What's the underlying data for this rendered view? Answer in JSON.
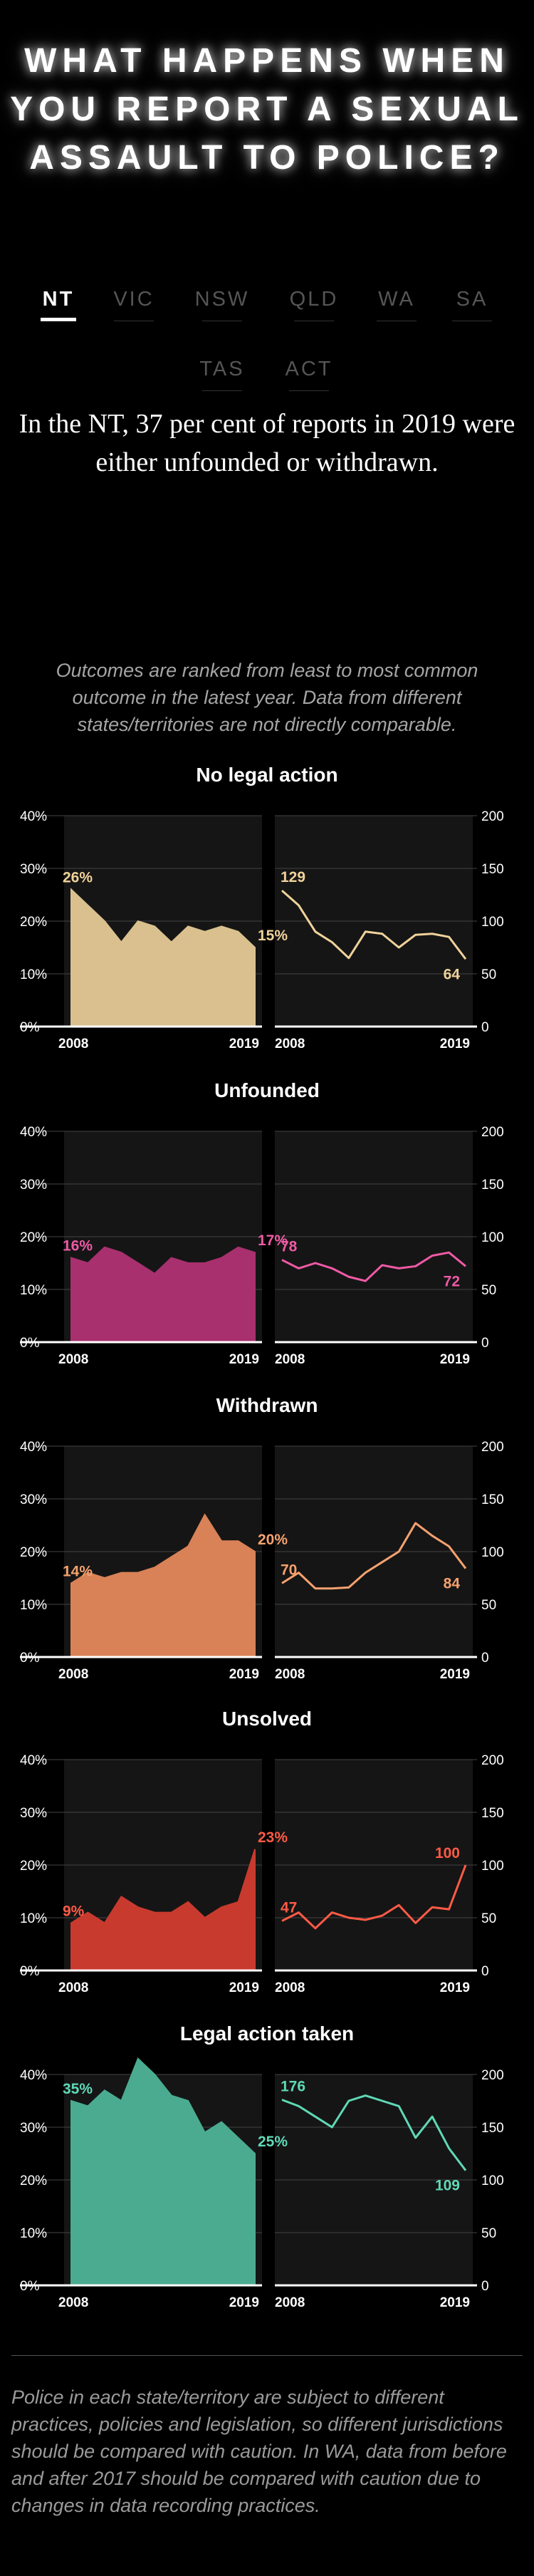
{
  "title": "WHAT HAPPENS WHEN YOU REPORT A SEXUAL ASSAULT TO POLICE?",
  "tabs": [
    {
      "label": "NT",
      "active": true
    },
    {
      "label": "VIC",
      "active": false
    },
    {
      "label": "NSW",
      "active": false
    },
    {
      "label": "QLD",
      "active": false
    },
    {
      "label": "WA",
      "active": false
    },
    {
      "label": "SA",
      "active": false
    },
    {
      "label": "TAS",
      "active": false
    },
    {
      "label": "ACT",
      "active": false
    }
  ],
  "lead": "In the NT, 37 per cent of reports in 2019 were either unfounded or withdrawn.",
  "intro": "Outcomes are ranked from least to most common outcome in the latest year. Data from different states/territories are not directly comparable.",
  "footnote": "Police in each state/territory are subject to different practices, policies and legislation, so different jurisdictions should be compared with caution. In WA, data from before and after 2017 should be compared with caution due to changes in data recording practices.",
  "chart_data": [
    {
      "type": "area",
      "title": "No legal action",
      "color": "#d9c08e",
      "label_color": "#f0d29a",
      "x": [
        2008,
        2009,
        2010,
        2011,
        2012,
        2013,
        2014,
        2015,
        2016,
        2017,
        2018,
        2019
      ],
      "percent": [
        26,
        23,
        20,
        16,
        20,
        19,
        16,
        19,
        18,
        19,
        18,
        15
      ],
      "count": [
        129,
        115,
        90,
        80,
        65,
        90,
        88,
        75,
        87,
        88,
        85,
        64
      ],
      "percent_labels": {
        "first": "26%",
        "last": "15%"
      },
      "count_labels": {
        "first": "129",
        "last": "64"
      },
      "percent_ylim": [
        0,
        40
      ],
      "count_ylim": [
        0,
        200
      ],
      "percent_ticks": [
        "40%",
        "30%",
        "20%",
        "10%",
        "0%"
      ],
      "count_ticks": [
        "200",
        "150",
        "100",
        "50",
        "0"
      ],
      "x_tick_labels": [
        "2008",
        "2019"
      ]
    },
    {
      "type": "area",
      "title": "Unfounded",
      "color": "#a8306f",
      "label_color": "#ee5aa5",
      "x": [
        2008,
        2009,
        2010,
        2011,
        2012,
        2013,
        2014,
        2015,
        2016,
        2017,
        2018,
        2019
      ],
      "percent": [
        16,
        15,
        18,
        17,
        15,
        13,
        16,
        15,
        15,
        16,
        18,
        17
      ],
      "count": [
        78,
        70,
        75,
        70,
        62,
        58,
        73,
        70,
        72,
        82,
        85,
        72
      ],
      "percent_labels": {
        "first": "16%",
        "last": "17%"
      },
      "count_labels": {
        "first": "78",
        "last": "72"
      },
      "percent_ylim": [
        0,
        40
      ],
      "count_ylim": [
        0,
        200
      ],
      "percent_ticks": [
        "40%",
        "30%",
        "20%",
        "10%",
        "0%"
      ],
      "count_ticks": [
        "200",
        "150",
        "100",
        "50",
        "0"
      ],
      "x_tick_labels": [
        "2008",
        "2019"
      ]
    },
    {
      "type": "area",
      "title": "Withdrawn",
      "color": "#d98257",
      "label_color": "#f5a26f",
      "x": [
        2008,
        2009,
        2010,
        2011,
        2012,
        2013,
        2014,
        2015,
        2016,
        2017,
        2018,
        2019
      ],
      "percent": [
        14,
        16,
        15,
        16,
        16,
        17,
        19,
        21,
        27,
        22,
        22,
        20
      ],
      "count": [
        70,
        80,
        65,
        65,
        66,
        80,
        90,
        100,
        127,
        115,
        105,
        84
      ],
      "percent_labels": {
        "first": "14%",
        "last": "20%"
      },
      "count_labels": {
        "first": "70",
        "last": "84"
      },
      "percent_ylim": [
        0,
        40
      ],
      "count_ylim": [
        0,
        200
      ],
      "percent_ticks": [
        "40%",
        "30%",
        "20%",
        "10%",
        "0%"
      ],
      "count_ticks": [
        "200",
        "150",
        "100",
        "50",
        "0"
      ],
      "x_tick_labels": [
        "2008",
        "2019"
      ]
    },
    {
      "type": "area",
      "title": "Unsolved",
      "color": "#c83a2e",
      "label_color": "#ff5a45",
      "x": [
        2008,
        2009,
        2010,
        2011,
        2012,
        2013,
        2014,
        2015,
        2016,
        2017,
        2018,
        2019
      ],
      "percent": [
        9,
        11,
        9,
        14,
        12,
        11,
        11,
        13,
        10,
        12,
        13,
        23
      ],
      "count": [
        47,
        55,
        40,
        55,
        50,
        48,
        52,
        62,
        45,
        60,
        58,
        100
      ],
      "percent_labels": {
        "first": "9%",
        "last": "23%"
      },
      "count_labels": {
        "first": "47",
        "last": "100"
      },
      "percent_ylim": [
        0,
        40
      ],
      "count_ylim": [
        0,
        200
      ],
      "percent_ticks": [
        "40%",
        "30%",
        "20%",
        "10%",
        "0%"
      ],
      "count_ticks": [
        "200",
        "150",
        "100",
        "50",
        "0"
      ],
      "x_tick_labels": [
        "2008",
        "2019"
      ]
    },
    {
      "type": "area",
      "title": "Legal action taken",
      "color": "#4aab90",
      "label_color": "#5fd9b5",
      "x": [
        2008,
        2009,
        2010,
        2011,
        2012,
        2013,
        2014,
        2015,
        2016,
        2017,
        2018,
        2019
      ],
      "percent": [
        35,
        34,
        37,
        35,
        43,
        40,
        36,
        35,
        29,
        31,
        28,
        25
      ],
      "count": [
        176,
        170,
        160,
        150,
        175,
        180,
        175,
        170,
        140,
        160,
        130,
        109
      ],
      "percent_labels": {
        "first": "35%",
        "last": "25%"
      },
      "count_labels": {
        "first": "176",
        "last": "109"
      },
      "percent_ylim": [
        0,
        40
      ],
      "count_ylim": [
        0,
        200
      ],
      "percent_ticks": [
        "40%",
        "30%",
        "20%",
        "10%",
        "0%"
      ],
      "count_ticks": [
        "200",
        "150",
        "100",
        "50",
        "0"
      ],
      "x_tick_labels": [
        "2008",
        "2019"
      ]
    }
  ]
}
